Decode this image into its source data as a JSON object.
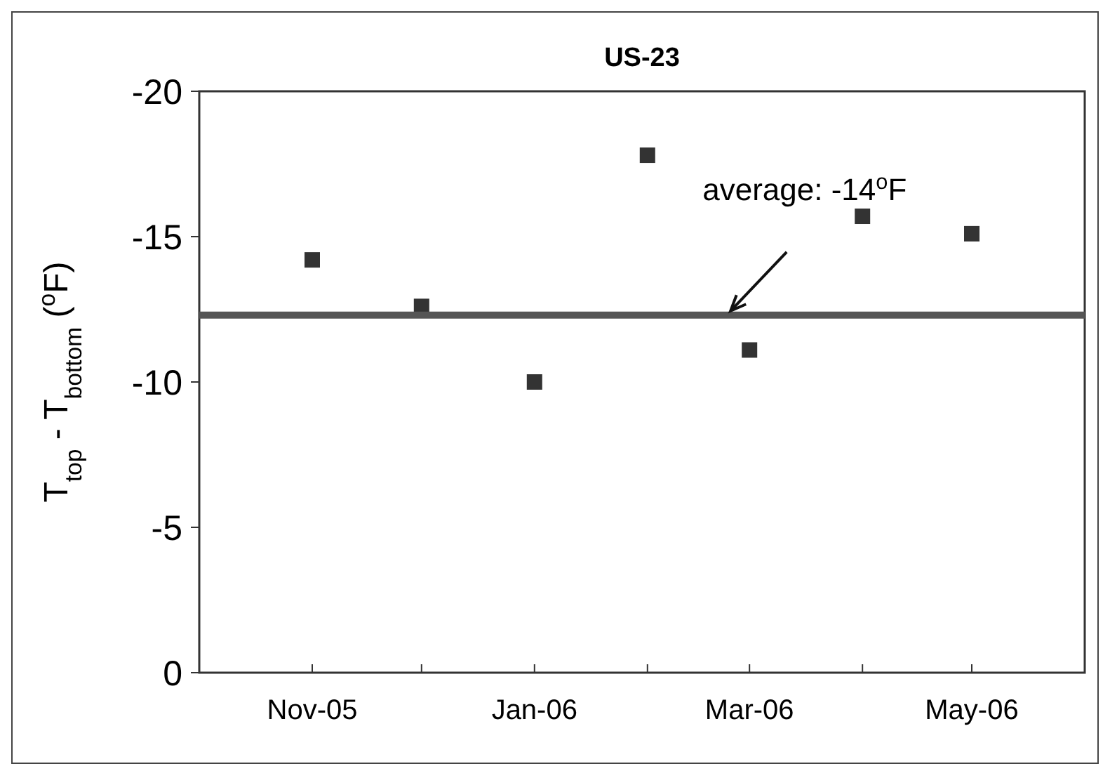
{
  "chart_data": {
    "type": "scatter",
    "title": "US-23",
    "ylabel": "T$_{top}$ - T$_{bottom}$ ($^{o}$F)",
    "x": [
      "2005-11",
      "2005-12",
      "2006-01",
      "2006-02",
      "2006-03",
      "2006-04",
      "2006-05"
    ],
    "series": [
      {
        "color": "#333333",
        "values": [
          -14.2,
          -12.6,
          -10.0,
          -17.8,
          -11.1,
          -15.7,
          -15.1
        ]
      }
    ],
    "xlim": [
      "2005-10",
      "2006-06"
    ],
    "xticks": [
      {
        "value": "2005-11",
        "label": "Nov-05"
      },
      {
        "value": "2005-12",
        "label": null
      },
      {
        "value": "2006-01",
        "label": "Jan-06"
      },
      {
        "value": "2006-02",
        "label": null
      },
      {
        "value": "2006-03",
        "label": "Mar-06"
      },
      {
        "value": "2006-04",
        "label": null
      },
      {
        "value": "2006-05",
        "label": "May-06"
      }
    ],
    "ylim": [
      0,
      -20
    ],
    "yticks": [
      0,
      -5,
      -10,
      -15,
      -20
    ],
    "marker": "square",
    "grid": false,
    "annotations": [
      "average: -14$^{o}$F"
    ],
    "ref_lines": [
      {
        "axis": "y",
        "value": -12.3,
        "color": "#555555"
      }
    ]
  }
}
